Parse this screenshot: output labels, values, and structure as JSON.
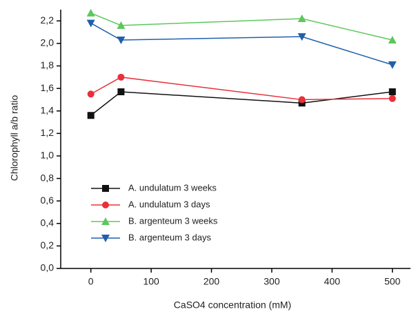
{
  "chart_data": {
    "type": "line",
    "x_label": "CaSO4 concentration (mM)",
    "y_label": "Chlorophyll a/b ratio",
    "x": [
      0,
      50,
      350,
      500
    ],
    "series": [
      {
        "name": "A. undulatum 3 weeks",
        "color": "#111111",
        "marker": "square",
        "values": [
          1.36,
          1.57,
          1.47,
          1.57
        ]
      },
      {
        "name": "A. undulatum 3 days",
        "color": "#e8303a",
        "marker": "circle",
        "values": [
          1.55,
          1.7,
          1.5,
          1.51
        ]
      },
      {
        "name": "B. argenteum 3 weeks",
        "color": "#5cc85c",
        "marker": "triangle-up",
        "values": [
          2.27,
          2.16,
          2.22,
          2.03
        ]
      },
      {
        "name": "B. argenteum 3 days",
        "color": "#1f5fae",
        "marker": "triangle-down",
        "values": [
          2.18,
          2.03,
          2.06,
          1.81
        ]
      }
    ],
    "xlim": [
      -50,
      530
    ],
    "xticks": [
      0,
      100,
      200,
      300,
      400,
      500
    ],
    "ylim": [
      0,
      2.3
    ],
    "yticks": [
      {
        "value": 0,
        "label": "0,0"
      },
      {
        "value": 0.2,
        "label": "0,2"
      },
      {
        "value": 0.4,
        "label": "0,4"
      },
      {
        "value": 0.6,
        "label": "0,6"
      },
      {
        "value": 0.8,
        "label": "0,8"
      },
      {
        "value": 1.0,
        "label": "1,0"
      },
      {
        "value": 1.2,
        "label": "1,2"
      },
      {
        "value": 1.4,
        "label": "1,4"
      },
      {
        "value": 1.6,
        "label": "1,6"
      },
      {
        "value": 1.8,
        "label": "1,8"
      },
      {
        "value": 2.0,
        "label": "2,0"
      },
      {
        "value": 2.2,
        "label": "2,2"
      }
    ],
    "legend": "lower-left"
  }
}
